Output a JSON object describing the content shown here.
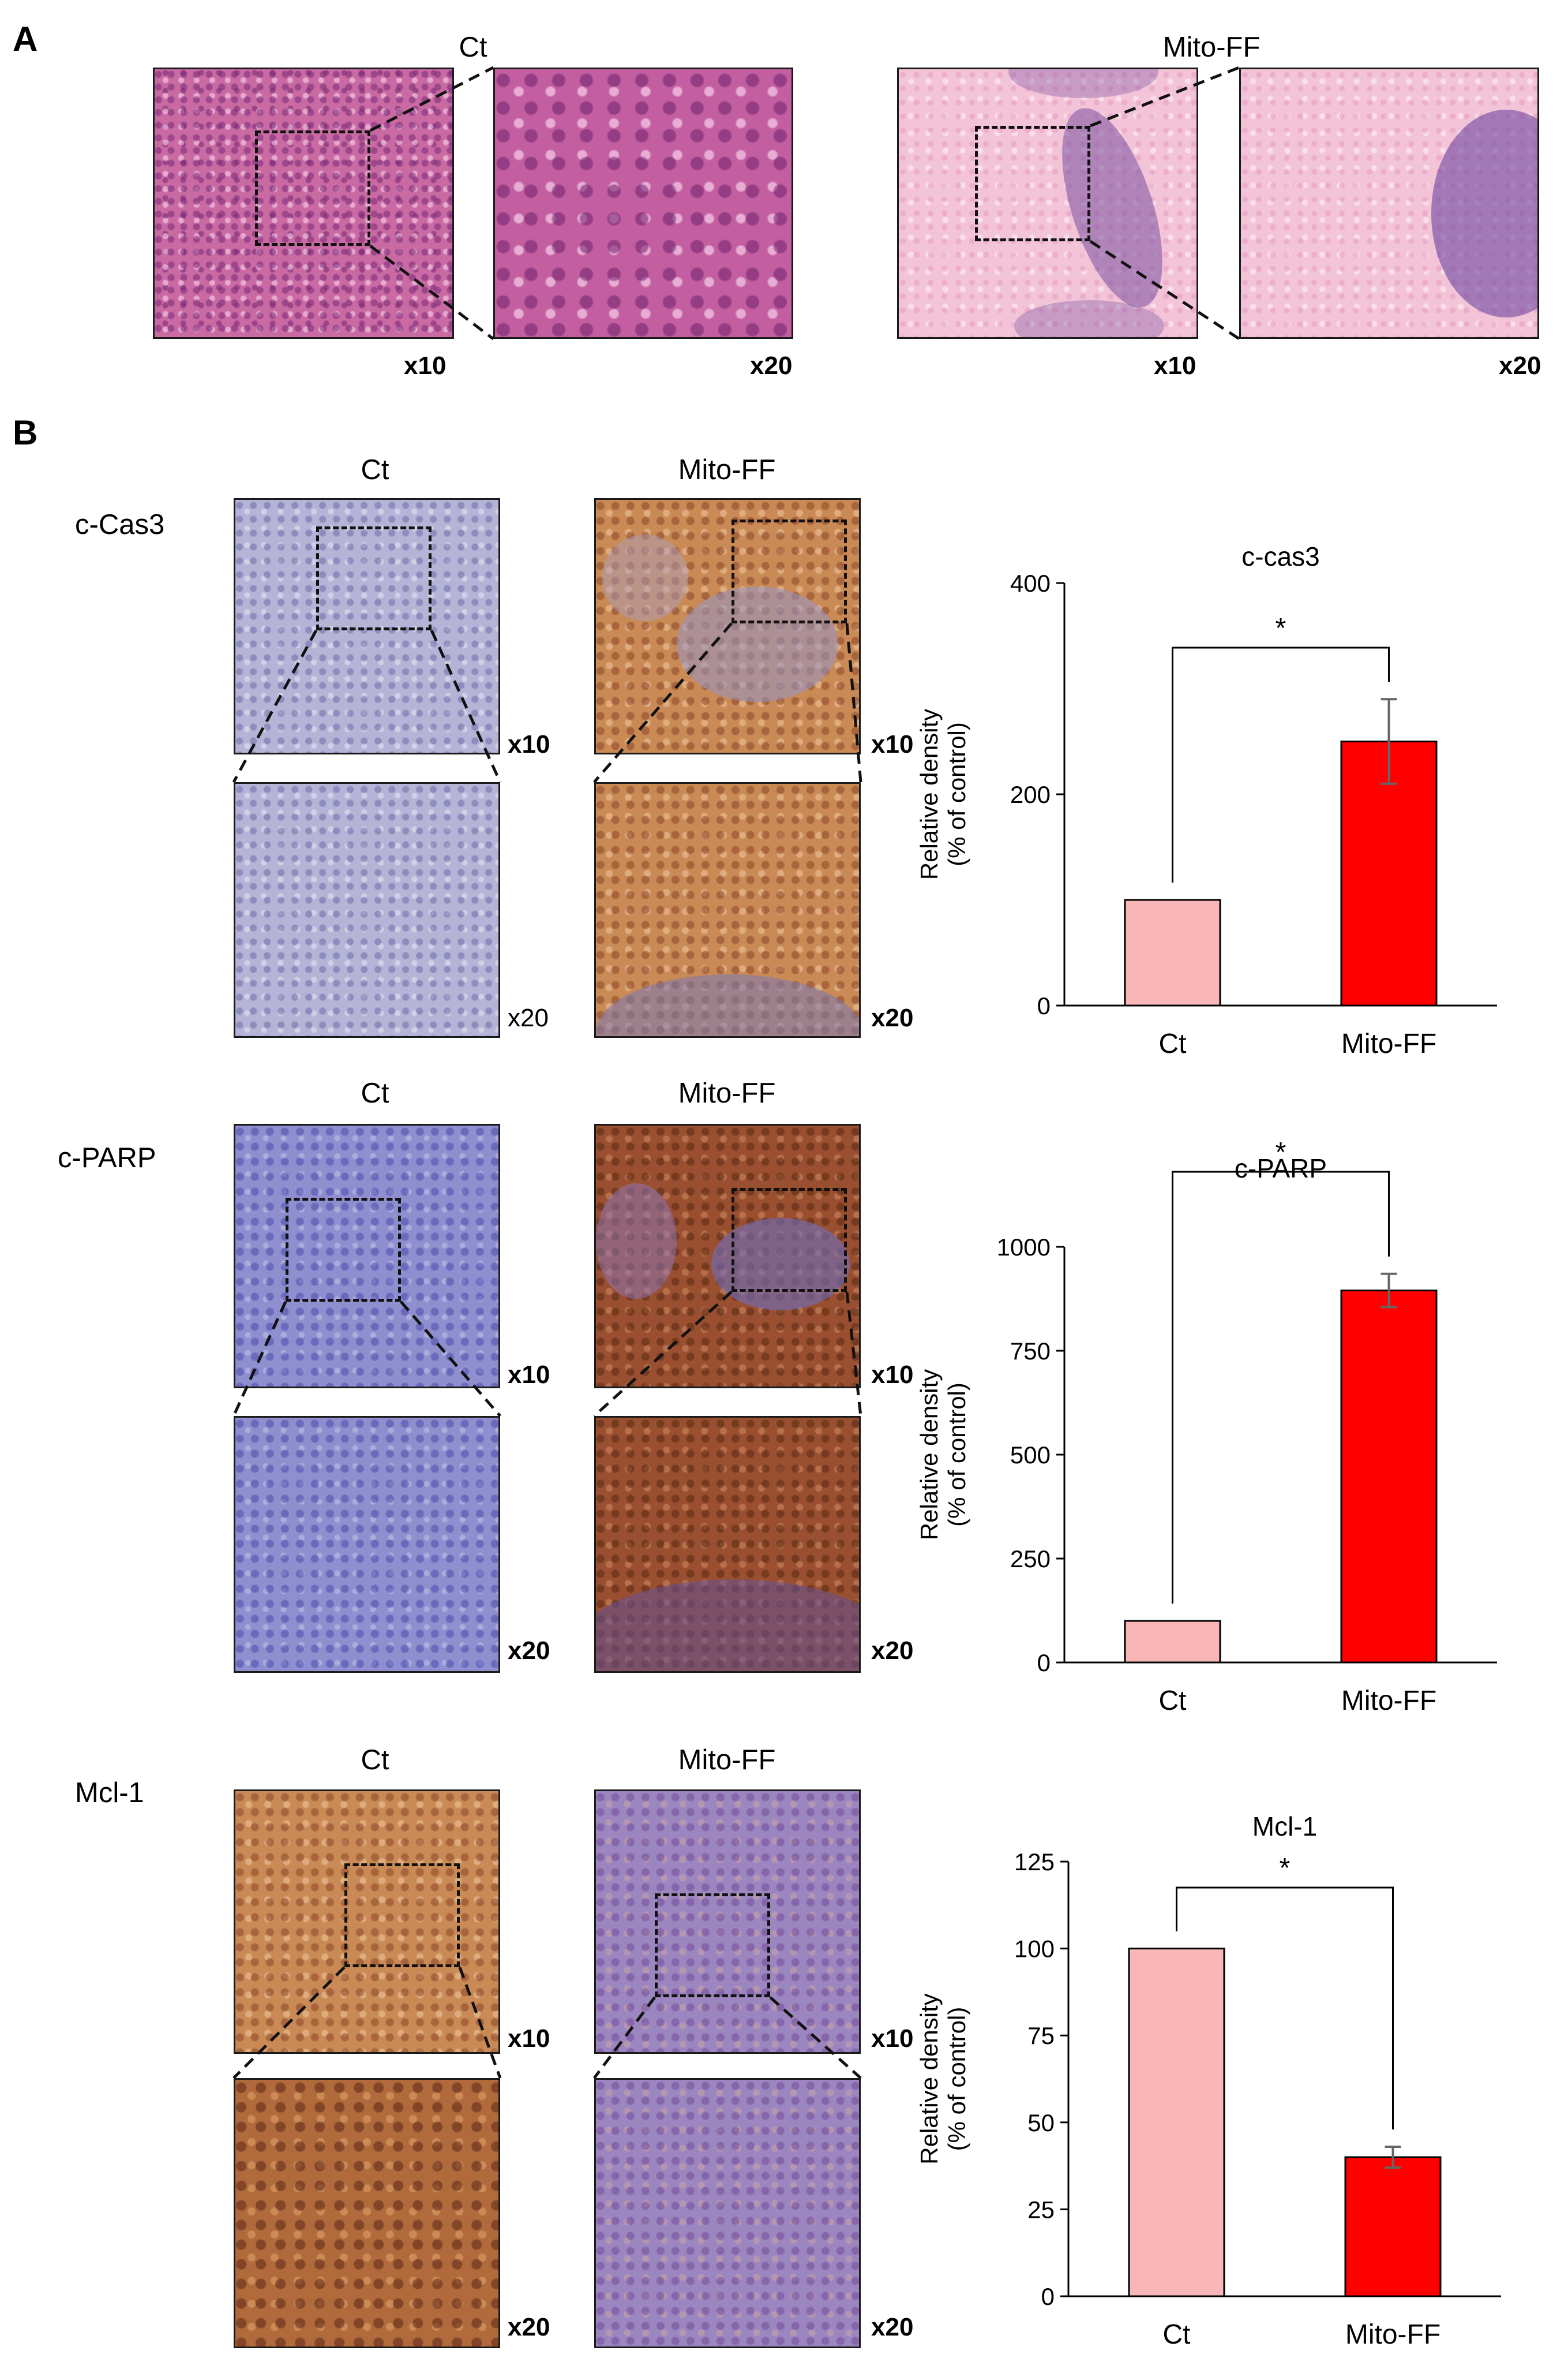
{
  "panel_a": {
    "letter": "A",
    "groups": [
      {
        "name": "Ct",
        "mag_low": "x10",
        "mag_high": "x20"
      },
      {
        "name": "Mito-FF",
        "mag_low": "x10",
        "mag_high": "x20"
      }
    ]
  },
  "panel_b": {
    "letter": "B",
    "rows": [
      {
        "marker": "c-Cas3",
        "ct_label": "Ct",
        "ff_label": "Mito-FF",
        "ct_low": "x10",
        "ct_high": "x20",
        "ff_low": "x10",
        "ff_high": "x20"
      },
      {
        "marker": "c-PARP",
        "ct_label": "Ct",
        "ff_label": "Mito-FF",
        "ct_low": "x10",
        "ct_high": "x20",
        "ff_low": "x10",
        "ff_high": "x20"
      },
      {
        "marker": "Mcl-1",
        "ct_label": "Ct",
        "ff_label": "Mito-FF",
        "ct_low": "x10",
        "ct_high": "x20",
        "ff_low": "x10",
        "ff_high": "x20"
      }
    ]
  },
  "colors": {
    "ct_bar": "#f9b6b6",
    "mito_bar": "#ff0000",
    "bar_stroke": "#000000",
    "error_bar": "#666666"
  },
  "chart_data": [
    {
      "type": "bar",
      "title": "c-cas3",
      "categories": [
        "Ct",
        "Mito-FF"
      ],
      "values": [
        100,
        250
      ],
      "errors": [
        0,
        40
      ],
      "ylabel": [
        "Relative density",
        "(% of control)"
      ],
      "ylim": [
        0,
        400
      ],
      "yticks": [
        0,
        200,
        400
      ],
      "significance": "*"
    },
    {
      "type": "bar",
      "title": "c-PARP",
      "categories": [
        "Ct",
        "Mito-FF"
      ],
      "values": [
        100,
        895
      ],
      "errors": [
        0,
        40
      ],
      "ylabel": [
        "Relative density",
        "(% of control)"
      ],
      "ylim": [
        0,
        1000
      ],
      "yticks": [
        0,
        250,
        500,
        750,
        1000
      ],
      "significance": "*"
    },
    {
      "type": "bar",
      "title": "Mcl-1",
      "categories": [
        "Ct",
        "Mito-FF"
      ],
      "values": [
        100,
        40
      ],
      "errors": [
        0,
        3
      ],
      "ylabel": [
        "Relative density",
        "(% of control)"
      ],
      "ylim": [
        0,
        125
      ],
      "yticks": [
        0,
        25,
        50,
        75,
        100,
        125
      ],
      "significance": "*"
    }
  ]
}
